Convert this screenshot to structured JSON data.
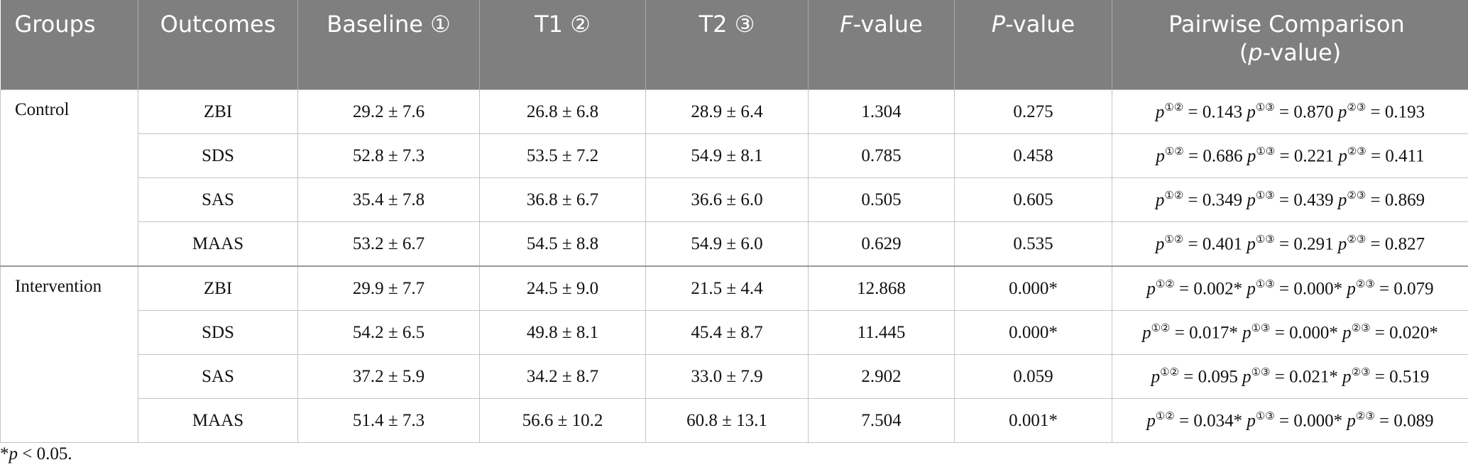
{
  "table": {
    "header": [
      "Groups",
      "Outcomes",
      "Baseline ①",
      "T1 ②",
      "T2 ③",
      [
        "F",
        "-value"
      ],
      [
        "P",
        "-value"
      ],
      [
        "Pairwise Comparison (",
        "p",
        "-value)"
      ]
    ],
    "groups": [
      {
        "name": "Control",
        "rows": [
          {
            "cells": [
              "ZBI",
              "29.2 ± 7.6",
              "26.8 ± 6.8",
              "28.9 ± 6.4",
              "1.304",
              "0.275"
            ],
            "pairwise": [
              {
                "p": "p",
                "pair": "①②",
                "eq": "=",
                "value": "0.143"
              },
              {
                "p": "p",
                "pair": "①③",
                "eq": "=",
                "value": "0.870"
              },
              {
                "p": "p",
                "pair": "②③",
                "eq": "=",
                "value": "0.193"
              }
            ]
          },
          {
            "cells": [
              "SDS",
              "52.8 ± 7.3",
              "53.5 ± 7.2",
              "54.9 ± 8.1",
              "0.785",
              "0.458"
            ],
            "pairwise": [
              {
                "p": "p",
                "pair": "①②",
                "eq": "=",
                "value": "0.686"
              },
              {
                "p": "p",
                "pair": "①③",
                "eq": "=",
                "value": "0.221"
              },
              {
                "p": "p",
                "pair": "②③",
                "eq": "=",
                "value": "0.411"
              }
            ]
          },
          {
            "cells": [
              "SAS",
              "35.4 ± 7.8",
              "36.8 ± 6.7",
              "36.6 ± 6.0",
              "0.505",
              "0.605"
            ],
            "pairwise": [
              {
                "p": "p",
                "pair": "①②",
                "eq": "=",
                "value": "0.349"
              },
              {
                "p": "p",
                "pair": "①③",
                "eq": "=",
                "value": "0.439"
              },
              {
                "p": "p",
                "pair": "②③",
                "eq": "=",
                "value": "0.869"
              }
            ]
          },
          {
            "cells": [
              "MAAS",
              "53.2 ± 6.7",
              "54.5 ± 8.8",
              "54.9 ± 6.0",
              "0.629",
              "0.535"
            ],
            "pairwise": [
              {
                "p": "p",
                "pair": "①②",
                "eq": "=",
                "value": "0.401"
              },
              {
                "p": "p",
                "pair": "①③",
                "eq": "=",
                "value": "0.291"
              },
              {
                "p": "p",
                "pair": "②③",
                "eq": "=",
                "value": "0.827"
              }
            ]
          }
        ]
      },
      {
        "name": "Intervention",
        "rows": [
          {
            "cells": [
              "ZBI",
              "29.9 ± 7.7",
              "24.5 ± 9.0",
              "21.5 ± 4.4",
              "12.868",
              "0.000*"
            ],
            "pairwise": [
              {
                "p": "p",
                "pair": "①②",
                "eq": "=",
                "value": "0.002*"
              },
              {
                "p": "p",
                "pair": "①③",
                "eq": "=",
                "value": "0.000*"
              },
              {
                "p": "p",
                "pair": "②③",
                "eq": "=",
                "value": "0.079"
              }
            ]
          },
          {
            "cells": [
              "SDS",
              "54.2 ± 6.5",
              "49.8 ± 8.1",
              "45.4 ± 8.7",
              "11.445",
              "0.000*"
            ],
            "pairwise": [
              {
                "p": "p",
                "pair": "①②",
                "eq": "=",
                "value": "0.017*"
              },
              {
                "p": "p",
                "pair": "①③",
                "eq": "=",
                "value": "0.000*"
              },
              {
                "p": "p",
                "pair": "②③",
                "eq": "=",
                "value": "0.020*"
              }
            ]
          },
          {
            "cells": [
              "SAS",
              "37.2 ± 5.9",
              "34.2 ± 8.7",
              "33.0 ± 7.9",
              "2.902",
              "0.059"
            ],
            "pairwise": [
              {
                "p": "p",
                "pair": "①②",
                "eq": "=",
                "value": "0.095"
              },
              {
                "p": "p",
                "pair": "①③",
                "eq": "=",
                "value": "0.021*"
              },
              {
                "p": "p",
                "pair": "②③",
                "eq": "=",
                "value": "0.519"
              }
            ]
          },
          {
            "cells": [
              "MAAS",
              "51.4 ± 7.3",
              "56.6 ± 10.2",
              "60.8 ± 13.1",
              "7.504",
              "0.001*"
            ],
            "pairwise": [
              {
                "p": "p",
                "pair": "①②",
                "eq": "=",
                "value": "0.034*"
              },
              {
                "p": "p",
                "pair": "①③",
                "eq": "=",
                "value": "0.000*"
              },
              {
                "p": "p",
                "pair": "②③",
                "eq": "=",
                "value": "0.089"
              }
            ]
          }
        ]
      }
    ]
  },
  "footnote": [
    "*",
    "p",
    " < 0.05."
  ]
}
